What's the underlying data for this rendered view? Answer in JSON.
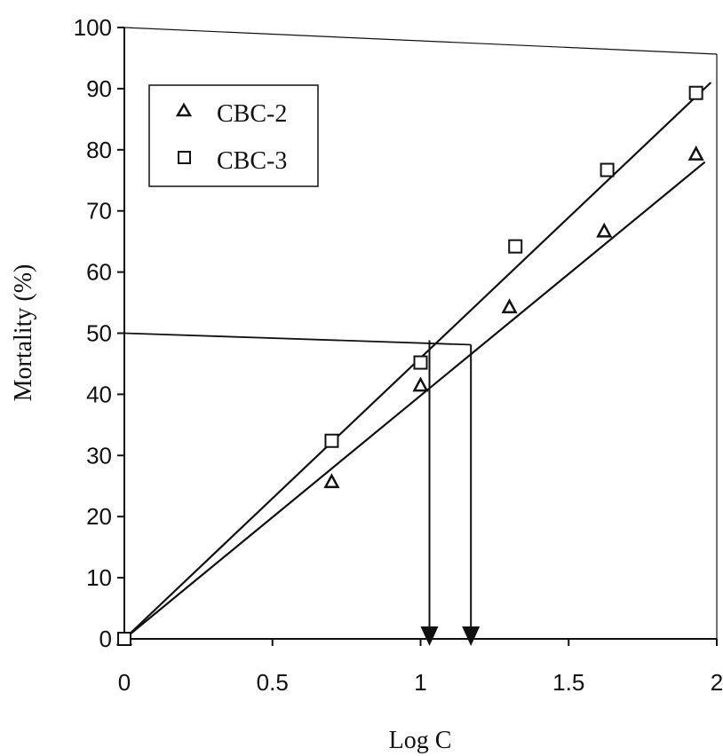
{
  "chart_data": {
    "type": "scatter",
    "title": "",
    "xlabel": "Log C",
    "ylabel": "Mortality (%)",
    "xlim": [
      0,
      2
    ],
    "ylim": [
      0,
      100
    ],
    "x_ticks": [
      "0",
      "0.5",
      "1",
      "1.5",
      "2"
    ],
    "y_ticks": [
      "0",
      "10",
      "20",
      "30",
      "40",
      "50",
      "60",
      "70",
      "80",
      "90",
      "100"
    ],
    "grid": false,
    "legend_position": "top-left",
    "series": [
      {
        "name": "CBC-2",
        "marker": "triangle",
        "x": [
          0,
          0.7,
          1.0,
          1.3,
          1.62,
          1.93
        ],
        "y": [
          0,
          25.7,
          41.5,
          54.3,
          66.7,
          79.3
        ],
        "trendline": {
          "x": [
            0,
            1.96
          ],
          "y": [
            0,
            78
          ]
        }
      },
      {
        "name": "CBC-3",
        "marker": "square",
        "x": [
          0,
          0.7,
          1.0,
          1.32,
          1.63,
          1.93
        ],
        "y": [
          0,
          32.4,
          45.2,
          64.2,
          76.7,
          89.3
        ],
        "trendline": {
          "x": [
            0,
            1.98
          ],
          "y": [
            0,
            91
          ]
        }
      }
    ],
    "annotations": {
      "reference_line_y": 50,
      "lc50_x": [
        1.03,
        1.17
      ]
    },
    "colors": {
      "ink": "#111111",
      "background": "#ffffff"
    }
  }
}
